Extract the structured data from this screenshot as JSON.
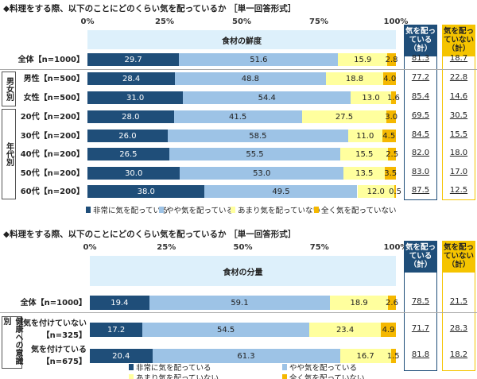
{
  "colors": {
    "very": "#1f4e79",
    "somewhat": "#9dc3e6",
    "notmuch": "#ffff9e",
    "notatall": "#f5b800",
    "band": "#ddf0fb",
    "sum_yes": "#1f4e79",
    "sum_no": "#f5c400"
  },
  "sum_headers": {
    "yes": "気を配っている（計）",
    "no": "気を配っていない（計）"
  },
  "chart_data": [
    {
      "type": "bar",
      "stacked": true,
      "orientation": "horizontal",
      "title": "◆料理をする際、以下のことにどのくらい気を配っているか ［単一回答形式］",
      "band_label": "食材の鮮度",
      "xlim": [
        0,
        100
      ],
      "ticks": [
        "0%",
        "25%",
        "50%",
        "75%",
        "100%"
      ],
      "legend": [
        "非常に気を配っている",
        "やや気を配っている",
        "あまり気を配っていない",
        "全く気を配っていない"
      ],
      "legend_position": "bottom",
      "groups": [
        {
          "label": "男女別",
          "rows": [
            1,
            2
          ]
        },
        {
          "label": "年代別",
          "rows": [
            3,
            4,
            5,
            6,
            7
          ]
        }
      ],
      "rows": [
        {
          "label": "全体【n=1000】",
          "values": [
            29.7,
            51.6,
            15.9,
            2.8
          ],
          "sum_yes": "81.3",
          "sum_no": "18.7"
        },
        {
          "label": "男性【n=500】",
          "values": [
            28.4,
            48.8,
            18.8,
            4.0
          ],
          "sum_yes": "77.2",
          "sum_no": "22.8"
        },
        {
          "label": "女性【n=500】",
          "values": [
            31.0,
            54.4,
            13.0,
            1.6
          ],
          "sum_yes": "85.4",
          "sum_no": "14.6"
        },
        {
          "label": "20代【n=200】",
          "values": [
            28.0,
            41.5,
            27.5,
            3.0
          ],
          "sum_yes": "69.5",
          "sum_no": "30.5"
        },
        {
          "label": "30代【n=200】",
          "values": [
            26.0,
            58.5,
            11.0,
            4.5
          ],
          "sum_yes": "84.5",
          "sum_no": "15.5"
        },
        {
          "label": "40代【n=200】",
          "values": [
            26.5,
            55.5,
            15.5,
            2.5
          ],
          "sum_yes": "82.0",
          "sum_no": "18.0"
        },
        {
          "label": "50代【n=200】",
          "values": [
            30.0,
            53.0,
            13.5,
            3.5
          ],
          "sum_yes": "83.0",
          "sum_no": "17.0"
        },
        {
          "label": "60代【n=200】",
          "values": [
            38.0,
            49.5,
            12.0,
            0.5
          ],
          "sum_yes": "87.5",
          "sum_no": "12.5"
        }
      ]
    },
    {
      "type": "bar",
      "stacked": true,
      "orientation": "horizontal",
      "title": "◆料理をする際、以下のことにどのくらい気を配っているか ［単一回答形式］",
      "band_label": "食材の分量",
      "xlim": [
        0,
        100
      ],
      "ticks": [
        "0%",
        "25%",
        "50%",
        "75%",
        "100%"
      ],
      "legend": [
        "非常に気を配っている",
        "やや気を配っている",
        "あまり気を配っていない",
        "全く気を配っていない"
      ],
      "legend_position": "bottom",
      "groups": [
        {
          "label": "健康への意識別",
          "rows": [
            1,
            2
          ]
        }
      ],
      "rows": [
        {
          "label": "全体【n=1000】",
          "values": [
            19.4,
            59.1,
            18.9,
            2.6
          ],
          "sum_yes": "78.5",
          "sum_no": "21.5"
        },
        {
          "label": "気を付けていない\n【n=325】",
          "values": [
            17.2,
            54.5,
            23.4,
            4.9
          ],
          "sum_yes": "71.7",
          "sum_no": "28.3"
        },
        {
          "label": "気を付けている\n【n=675】",
          "values": [
            20.4,
            61.3,
            16.7,
            1.5
          ],
          "sum_yes": "81.8",
          "sum_no": "18.2"
        }
      ]
    }
  ]
}
